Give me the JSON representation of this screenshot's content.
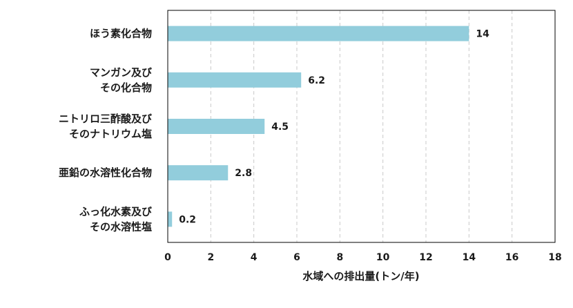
{
  "chart_data": {
    "type": "bar",
    "orientation": "horizontal",
    "categories": [
      [
        "ほう素化合物"
      ],
      [
        "マンガン及び",
        "その化合物"
      ],
      [
        "ニトリロ三酢酸及び",
        "そのナトリウム塩"
      ],
      [
        "亜鉛の水溶性化合物"
      ],
      [
        "ふっ化水素及び",
        "その水溶性塩"
      ]
    ],
    "values": [
      14,
      6.2,
      4.5,
      2.8,
      0.2
    ],
    "value_labels": [
      "14",
      "6.2",
      "4.5",
      "2.8",
      "0.2"
    ],
    "xlabel": "水域への排出量(トン/年)",
    "xlim": [
      0,
      18
    ],
    "xticks": [
      "0",
      "2",
      "4",
      "6",
      "8",
      "10",
      "12",
      "14",
      "16",
      "18"
    ],
    "grid": "vertical dashed",
    "bar_color": "#92cddc"
  }
}
